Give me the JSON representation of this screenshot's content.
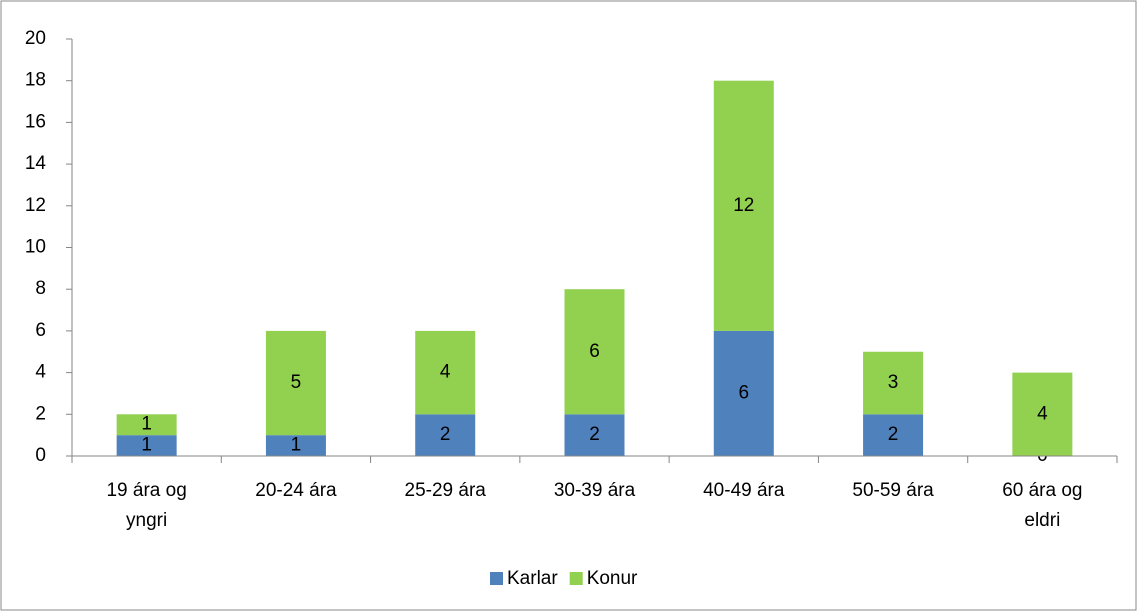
{
  "chart_data": {
    "type": "stacked_bar",
    "categories": [
      "19 ára og yngri",
      "20-24 ára",
      "25-29 ára",
      "30-39 ára",
      "40-49 ára",
      "50-59 ára",
      "60 ára og eldri"
    ],
    "series": [
      {
        "name": "Karlar",
        "color": "#4f81bd",
        "values": [
          1,
          1,
          2,
          2,
          6,
          2,
          0
        ]
      },
      {
        "name": "Konur",
        "color": "#92d050",
        "values": [
          1,
          5,
          4,
          6,
          12,
          3,
          4
        ]
      }
    ],
    "ylim": [
      0,
      20
    ],
    "yticks": [
      0,
      2,
      4,
      6,
      8,
      10,
      12,
      14,
      16,
      18,
      20
    ],
    "grid": false,
    "legend": "bottom"
  }
}
